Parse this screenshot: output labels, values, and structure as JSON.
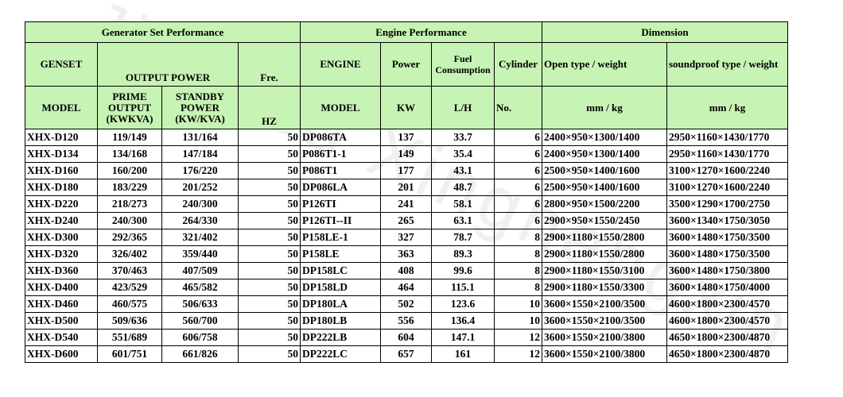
{
  "header": {
    "group_generator": "Generator Set Performance",
    "group_engine": "Engine Performance",
    "group_dimension": "Dimension",
    "genset": "GENSET",
    "output_power": "OUTPUT  POWER",
    "fre": "Fre.",
    "engine": "ENGINE",
    "power": "Power",
    "fuel_consumption": "Fuel Consumption",
    "cylinder": "Cylinder",
    "open_type": "Open type  / weight",
    "soundproof_type": "soundproof type / weight",
    "model": "MODEL",
    "prime_output": "PRIME OUTPUT (KWKVA)",
    "standby_power": "STANDBY POWER (KW/KVA)",
    "hz": "HZ",
    "engine_model": "MODEL",
    "kw": "KW",
    "lh": "L/H",
    "no": "No.",
    "open_unit": "mm  /  kg",
    "soundproof_unit": "mm / kg"
  },
  "rows": [
    {
      "model": "XHX-D120",
      "prime": "119/149",
      "standby": "131/164",
      "hz": "50",
      "engine": "DP086TA",
      "kw": "137",
      "lh": "33.7",
      "cyl": "6",
      "open": "2400×950×1300/1400",
      "sound": "2950×1160×1430/1770"
    },
    {
      "model": "XHX-D134",
      "prime": "134/168",
      "standby": "147/184",
      "hz": "50",
      "engine": "P086T1-1",
      "kw": "149",
      "lh": "35.4",
      "cyl": "6",
      "open": "2400×950×1300/1400",
      "sound": "2950×1160×1430/1770"
    },
    {
      "model": "XHX-D160",
      "prime": "160/200",
      "standby": "176/220",
      "hz": "50",
      "engine": "P086T1",
      "kw": "177",
      "lh": "43.1",
      "cyl": "6",
      "open": "2500×950×1400/1600",
      "sound": "3100×1270×1600/2240"
    },
    {
      "model": "XHX-D180",
      "prime": "183/229",
      "standby": "201/252",
      "hz": "50",
      "engine": "DP086LA",
      "kw": "201",
      "lh": "48.7",
      "cyl": "6",
      "open": "2500×950×1400/1600",
      "sound": "3100×1270×1600/2240"
    },
    {
      "model": "XHX-D220",
      "prime": "218/273",
      "standby": "240/300",
      "hz": "50",
      "engine": "P126TI",
      "kw": "241",
      "lh": "58.1",
      "cyl": "6",
      "open": "2800×950×1500/2200",
      "sound": "3500×1290×1700/2750"
    },
    {
      "model": "XHX-D240",
      "prime": "240/300",
      "standby": "264/330",
      "hz": "50",
      "engine": "P126TI--II",
      "kw": "265",
      "lh": "63.1",
      "cyl": "6",
      "open": "2900×950×1550/2450",
      "sound": "3600×1340×1750/3050"
    },
    {
      "model": "XHX-D300",
      "prime": "292/365",
      "standby": "321/402",
      "hz": "50",
      "engine": "P158LE-1",
      "kw": "327",
      "lh": "78.7",
      "cyl": "8",
      "open": "2900×1180×1550/2800",
      "sound": "3600×1480×1750/3500"
    },
    {
      "model": "XHX-D320",
      "prime": "326/402",
      "standby": "359/440",
      "hz": "50",
      "engine": "P158LE",
      "kw": "363",
      "lh": "89.3",
      "cyl": "8",
      "open": "2900×1180×1550/2800",
      "sound": "3600×1480×1750/3500"
    },
    {
      "model": "XHX-D360",
      "prime": "370/463",
      "standby": "407/509",
      "hz": "50",
      "engine": "DP158LC",
      "kw": "408",
      "lh": "99.6",
      "cyl": "8",
      "open": "2900×1180×1550/3100",
      "sound": "3600×1480×1750/3800"
    },
    {
      "model": "XHX-D400",
      "prime": "423/529",
      "standby": "465/582",
      "hz": "50",
      "engine": "DP158LD",
      "kw": "464",
      "lh": "115.1",
      "cyl": "8",
      "open": "2900×1180×1550/3300",
      "sound": "3600×1480×1750/4000"
    },
    {
      "model": "XHX-D460",
      "prime": "460/575",
      "standby": "506/633",
      "hz": "50",
      "engine": "DP180LA",
      "kw": "502",
      "lh": "123.6",
      "cyl": "10",
      "open": "3600×1550×2100/3500",
      "sound": "4600×1800×2300/4570"
    },
    {
      "model": "XHX-D500",
      "prime": "509/636",
      "standby": "560/700",
      "hz": "50",
      "engine": "DP180LB",
      "kw": "556",
      "lh": "136.4",
      "cyl": "10",
      "open": "3600×1550×2100/3500",
      "sound": "4600×1800×2300/4570"
    },
    {
      "model": "XHX-D540",
      "prime": "551/689",
      "standby": "606/758",
      "hz": "50",
      "engine": "DP222LB",
      "kw": "604",
      "lh": "147.1",
      "cyl": "12",
      "open": "3600×1550×2100/3800",
      "sound": "4650×1800×2300/4870"
    },
    {
      "model": "XHX-D600",
      "prime": "601/751",
      "standby": "661/826",
      "hz": "50",
      "engine": "DP222LC",
      "kw": "657",
      "lh": "161",
      "cyl": "12",
      "open": "3600×1550×2100/3800",
      "sound": "4650×1800×2300/4870"
    }
  ],
  "watermark": "Jiangsu Xinghengxin",
  "colors": {
    "header_bg": "#c7f3b4",
    "border": "#000000"
  }
}
